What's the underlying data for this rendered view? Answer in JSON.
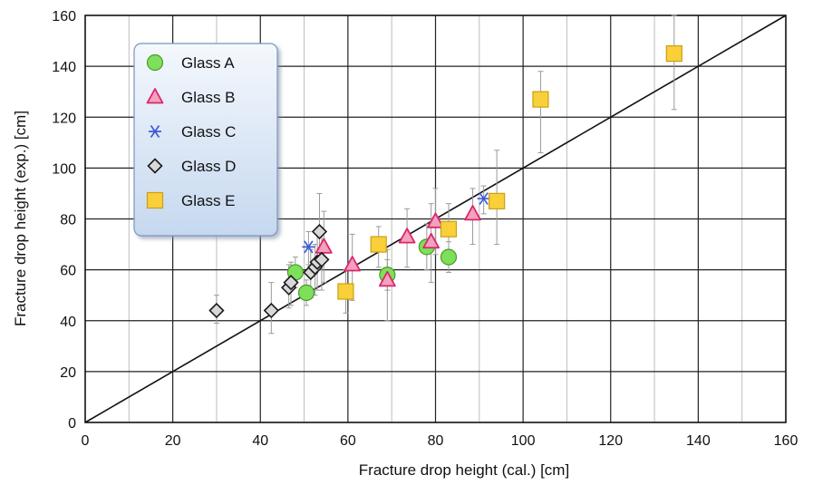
{
  "chart_data": {
    "type": "scatter",
    "title": "",
    "xlabel": "Fracture drop height (cal.)  [cm]",
    "ylabel": "Fracture drop height (exp.) [cm]",
    "xlim": [
      0,
      160
    ],
    "ylim": [
      0,
      160
    ],
    "xticks": [
      "0",
      "20",
      "40",
      "60",
      "80",
      "100",
      "120",
      "140",
      "160"
    ],
    "yticks": [
      "0",
      "20",
      "40",
      "60",
      "80",
      "100",
      "120",
      "140",
      "160"
    ],
    "grid": true,
    "legend_position": "top-left",
    "reference_line": {
      "from": [
        0,
        0
      ],
      "to": [
        160,
        160
      ]
    },
    "series": [
      {
        "name": "Glass A",
        "marker": "circle",
        "color": "#7ee05a",
        "stroke": "#4a9a2a",
        "points": [
          {
            "x": 48,
            "y": 59,
            "lo": 53,
            "hi": 65
          },
          {
            "x": 50.5,
            "y": 51,
            "lo": 46,
            "hi": 56
          },
          {
            "x": 69,
            "y": 58,
            "lo": 52,
            "hi": 64
          },
          {
            "x": 78,
            "y": 69,
            "lo": 60,
            "hi": 78
          },
          {
            "x": 83,
            "y": 65,
            "lo": 59,
            "hi": 71
          }
        ]
      },
      {
        "name": "Glass B",
        "marker": "triangle",
        "color": "#f4a0be",
        "stroke": "#d8286a",
        "points": [
          {
            "x": 54.5,
            "y": 69,
            "lo": 55,
            "hi": 83
          },
          {
            "x": 61,
            "y": 62,
            "lo": 48,
            "hi": 74
          },
          {
            "x": 69,
            "y": 56,
            "lo": 40,
            "hi": 68
          },
          {
            "x": 73.5,
            "y": 73,
            "lo": 61,
            "hi": 84
          },
          {
            "x": 79,
            "y": 71,
            "lo": 55,
            "hi": 86
          },
          {
            "x": 80,
            "y": 79,
            "lo": 66,
            "hi": 92
          },
          {
            "x": 88.5,
            "y": 82,
            "lo": 70,
            "hi": 92
          }
        ]
      },
      {
        "name": "Glass C",
        "marker": "star",
        "color": "#3b5bd6",
        "stroke": "#3b5bd6",
        "points": [
          {
            "x": 51,
            "y": 69,
            "lo": 62,
            "hi": 75
          },
          {
            "x": 91,
            "y": 88,
            "lo": 82,
            "hi": 93
          }
        ]
      },
      {
        "name": "Glass D",
        "marker": "diamond",
        "color": "#d8d8d8",
        "stroke": "#1a1a1a",
        "points": [
          {
            "x": 30,
            "y": 44,
            "lo": 39,
            "hi": 50
          },
          {
            "x": 42.5,
            "y": 44,
            "lo": 35,
            "hi": 55
          },
          {
            "x": 46.5,
            "y": 53,
            "lo": 45,
            "hi": 62
          },
          {
            "x": 47,
            "y": 55,
            "lo": 46,
            "hi": 63
          },
          {
            "x": 51.5,
            "y": 59,
            "lo": 49,
            "hi": 68
          },
          {
            "x": 52.5,
            "y": 61,
            "lo": 50,
            "hi": 70
          },
          {
            "x": 53,
            "y": 63,
            "lo": 52,
            "hi": 74
          },
          {
            "x": 54,
            "y": 64,
            "lo": 52,
            "hi": 76
          },
          {
            "x": 53.5,
            "y": 75,
            "lo": 60,
            "hi": 90
          }
        ]
      },
      {
        "name": "Glass E",
        "marker": "square",
        "color": "#f9cf3a",
        "stroke": "#c9a015",
        "points": [
          {
            "x": 59.5,
            "y": 51.5,
            "lo": 43,
            "hi": 60
          },
          {
            "x": 67,
            "y": 70,
            "lo": 61,
            "hi": 77
          },
          {
            "x": 83,
            "y": 76,
            "lo": 66,
            "hi": 86
          },
          {
            "x": 94,
            "y": 87,
            "lo": 70,
            "hi": 107
          },
          {
            "x": 104,
            "y": 127,
            "lo": 106,
            "hi": 138
          },
          {
            "x": 134.5,
            "y": 145,
            "lo": 123,
            "hi": 160
          }
        ]
      }
    ]
  }
}
